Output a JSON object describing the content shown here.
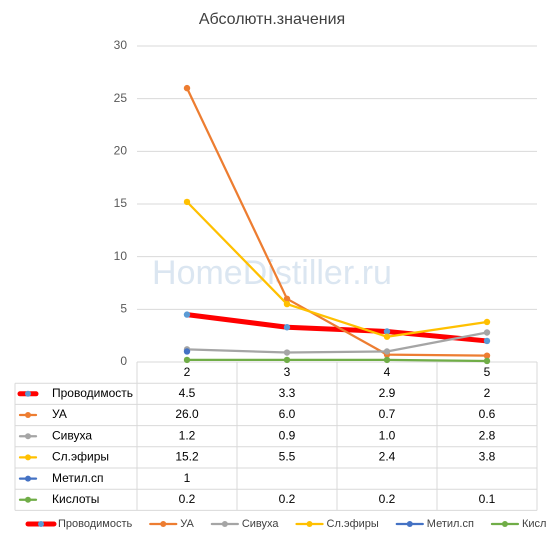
{
  "chart_data": {
    "type": "line",
    "title": "Абсолютн.значения",
    "watermark": "HomeDistiller.ru",
    "categories": [
      "2",
      "3",
      "4",
      "5"
    ],
    "ylim": [
      0,
      30
    ],
    "yticks": [
      0,
      5,
      10,
      15,
      20,
      25,
      30
    ],
    "grid": true,
    "legend": "bottom",
    "series": [
      {
        "name": "Проводимость",
        "color": "#ff0000",
        "marker_color": "#5b9bd5",
        "line_width": 5,
        "values": [
          4.5,
          3.3,
          2.9,
          2
        ],
        "value_labels": [
          "4.5",
          "3.3",
          "2.9",
          "2"
        ]
      },
      {
        "name": "УА",
        "color": "#ed7d31",
        "values": [
          26,
          6,
          0.7,
          0.6
        ],
        "value_labels": [
          "26.0",
          "6.0",
          "0.7",
          "0.6"
        ]
      },
      {
        "name": "Сивуха",
        "color": "#a5a5a5",
        "values": [
          1.2,
          0.9,
          1,
          2.8
        ],
        "value_labels": [
          "1.2",
          "0.9",
          "1.0",
          "2.8"
        ]
      },
      {
        "name": "Сл.эфиры",
        "color": "#ffc000",
        "values": [
          15.2,
          5.5,
          2.4,
          3.8
        ],
        "value_labels": [
          "15.2",
          "5.5",
          "2.4",
          "3.8"
        ]
      },
      {
        "name": "Метил.сп",
        "color": "#4472c4",
        "values": [
          1,
          null,
          null,
          null
        ],
        "value_labels": [
          "1",
          null,
          null,
          null
        ]
      },
      {
        "name": "Кислоты",
        "color": "#70ad47",
        "values": [
          0.2,
          0.2,
          0.2,
          0.1
        ],
        "value_labels": [
          "0.2",
          "0.2",
          "0.2",
          "0.1"
        ]
      }
    ]
  }
}
